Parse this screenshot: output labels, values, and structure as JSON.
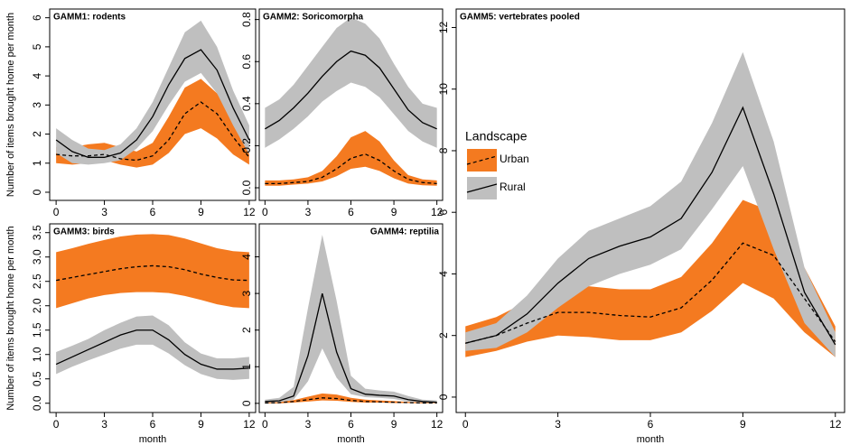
{
  "chart_data": [
    {
      "type": "line",
      "title": "GAMM1: rodents",
      "title_align": "left",
      "ylabel": "Number of items brought home per month",
      "x": [
        0,
        1,
        2,
        3,
        4,
        5,
        6,
        7,
        8,
        9,
        10,
        11,
        12
      ],
      "xlim": [
        -0.4,
        12.4
      ],
      "xticks": [
        0,
        3,
        6,
        9,
        12
      ],
      "ylim": [
        -0.28,
        6.3
      ],
      "yticks": [
        0,
        1,
        2,
        3,
        4,
        5,
        6
      ],
      "series": [
        {
          "color": "#f47a20",
          "line_color": "#000000",
          "dash": true,
          "values": [
            1.3,
            1.25,
            1.25,
            1.3,
            1.15,
            1.1,
            1.25,
            1.8,
            2.7,
            3.1,
            2.7,
            1.9,
            1.2
          ],
          "lower": [
            1.0,
            0.95,
            1.0,
            1.1,
            0.95,
            0.85,
            0.95,
            1.35,
            2.0,
            2.2,
            1.85,
            1.3,
            0.95
          ],
          "upper": [
            1.55,
            1.55,
            1.65,
            1.7,
            1.55,
            1.4,
            1.7,
            2.6,
            3.6,
            3.9,
            3.4,
            2.5,
            1.5
          ]
        },
        {
          "color": "#bfbfbf",
          "line_color": "#000000",
          "dash": false,
          "values": [
            1.8,
            1.4,
            1.2,
            1.2,
            1.35,
            1.8,
            2.6,
            3.7,
            4.6,
            4.9,
            4.2,
            2.9,
            1.8
          ],
          "lower": [
            1.35,
            1.0,
            0.95,
            1.0,
            1.1,
            1.5,
            2.1,
            3.0,
            3.8,
            4.1,
            3.4,
            2.3,
            1.3
          ],
          "upper": [
            2.2,
            1.8,
            1.5,
            1.45,
            1.65,
            2.2,
            3.1,
            4.3,
            5.5,
            5.9,
            5.0,
            3.5,
            2.3
          ]
        }
      ]
    },
    {
      "type": "line",
      "title": "GAMM2: Soricomorpha",
      "title_align": "left",
      "x": [
        0,
        1,
        2,
        3,
        4,
        5,
        6,
        7,
        8,
        9,
        10,
        11,
        12
      ],
      "xlim": [
        -0.4,
        12.4
      ],
      "xticks": [
        0,
        3,
        6,
        9,
        12
      ],
      "ylim": [
        -0.06,
        0.85
      ],
      "yticks": [
        {
          "value": 0,
          "label": "0.0"
        },
        0.2,
        0.4,
        0.6,
        0.8
      ],
      "series": [
        {
          "color": "#f47a20",
          "line_color": "#000000",
          "dash": true,
          "values": [
            0.02,
            0.02,
            0.025,
            0.03,
            0.05,
            0.09,
            0.14,
            0.16,
            0.13,
            0.08,
            0.04,
            0.025,
            0.02
          ],
          "lower": [
            0.01,
            0.01,
            0.015,
            0.02,
            0.03,
            0.055,
            0.09,
            0.1,
            0.08,
            0.045,
            0.02,
            0.012,
            0.01
          ],
          "upper": [
            0.035,
            0.035,
            0.04,
            0.05,
            0.08,
            0.15,
            0.24,
            0.27,
            0.22,
            0.13,
            0.06,
            0.04,
            0.035
          ]
        },
        {
          "color": "#bfbfbf",
          "line_color": "#000000",
          "dash": false,
          "values": [
            0.28,
            0.32,
            0.38,
            0.45,
            0.53,
            0.6,
            0.65,
            0.63,
            0.57,
            0.47,
            0.37,
            0.31,
            0.28
          ],
          "lower": [
            0.19,
            0.23,
            0.28,
            0.34,
            0.41,
            0.46,
            0.5,
            0.48,
            0.43,
            0.35,
            0.27,
            0.22,
            0.19
          ],
          "upper": [
            0.38,
            0.42,
            0.49,
            0.58,
            0.67,
            0.76,
            0.81,
            0.78,
            0.71,
            0.59,
            0.48,
            0.4,
            0.38
          ]
        }
      ]
    },
    {
      "type": "line",
      "title": "GAMM3: birds",
      "title_align": "left",
      "ylabel": "Number of items brought home per month",
      "xlabel": "month",
      "x": [
        0,
        1,
        2,
        3,
        4,
        5,
        6,
        7,
        8,
        9,
        10,
        11,
        12
      ],
      "xlim": [
        -0.4,
        12.4
      ],
      "xticks": [
        0,
        3,
        6,
        9,
        12
      ],
      "ylim": [
        -0.19,
        3.68
      ],
      "yticks": [
        {
          "value": 0,
          "label": "0.0"
        },
        0.5,
        {
          "value": 1,
          "label": "1.0"
        },
        1.5,
        {
          "value": 2,
          "label": "2.0"
        },
        2.5,
        {
          "value": 3,
          "label": "3.0"
        },
        3.5
      ],
      "series": [
        {
          "color": "#f47a20",
          "line_color": "#000000",
          "dash": true,
          "values": [
            2.52,
            2.58,
            2.64,
            2.7,
            2.76,
            2.8,
            2.82,
            2.8,
            2.74,
            2.65,
            2.58,
            2.53,
            2.52
          ],
          "lower": [
            1.95,
            2.05,
            2.15,
            2.22,
            2.26,
            2.28,
            2.28,
            2.26,
            2.2,
            2.12,
            2.03,
            1.97,
            1.95
          ],
          "upper": [
            3.1,
            3.18,
            3.27,
            3.35,
            3.42,
            3.46,
            3.47,
            3.45,
            3.38,
            3.28,
            3.18,
            3.12,
            3.1
          ]
        },
        {
          "color": "#bfbfbf",
          "line_color": "#000000",
          "dash": false,
          "values": [
            0.8,
            0.95,
            1.1,
            1.25,
            1.4,
            1.5,
            1.5,
            1.3,
            1.0,
            0.8,
            0.7,
            0.7,
            0.72
          ],
          "lower": [
            0.6,
            0.75,
            0.88,
            1.0,
            1.12,
            1.2,
            1.2,
            1.02,
            0.78,
            0.6,
            0.5,
            0.48,
            0.5
          ],
          "upper": [
            1.05,
            1.18,
            1.32,
            1.5,
            1.65,
            1.78,
            1.8,
            1.6,
            1.25,
            1.02,
            0.92,
            0.92,
            0.95
          ]
        }
      ]
    },
    {
      "type": "line",
      "title": "GAMM4: reptilia",
      "title_align": "right",
      "xlabel": "month",
      "x": [
        0,
        1,
        2,
        3,
        4,
        5,
        6,
        7,
        8,
        9,
        10,
        11,
        12
      ],
      "xlim": [
        -0.4,
        12.4
      ],
      "xticks": [
        0,
        3,
        6,
        9,
        12
      ],
      "ylim": [
        -0.25,
        4.9
      ],
      "yticks": [
        0,
        1,
        2,
        3,
        4
      ],
      "series": [
        {
          "color": "#f47a20",
          "line_color": "#000000",
          "dash": true,
          "values": [
            0.01,
            0.02,
            0.05,
            0.1,
            0.15,
            0.13,
            0.08,
            0.05,
            0.04,
            0.03,
            0.02,
            0.01,
            0.01
          ],
          "lower": [
            0,
            0,
            0.02,
            0.05,
            0.08,
            0.07,
            0.04,
            0.02,
            0.02,
            0.01,
            0.01,
            0,
            0
          ],
          "upper": [
            0.03,
            0.04,
            0.09,
            0.18,
            0.27,
            0.24,
            0.15,
            0.1,
            0.08,
            0.06,
            0.04,
            0.03,
            0.03
          ]
        },
        {
          "color": "#bfbfbf",
          "line_color": "#000000",
          "dash": false,
          "values": [
            0.05,
            0.07,
            0.2,
            1.3,
            3.0,
            1.4,
            0.4,
            0.25,
            0.22,
            0.2,
            0.1,
            0.05,
            0.03
          ],
          "lower": [
            0.02,
            0.03,
            0.1,
            0.6,
            1.5,
            0.7,
            0.25,
            0.17,
            0.15,
            0.12,
            0.05,
            0.02,
            0.01
          ],
          "upper": [
            0.1,
            0.15,
            0.45,
            2.6,
            4.6,
            2.8,
            0.75,
            0.4,
            0.35,
            0.32,
            0.2,
            0.1,
            0.08
          ]
        }
      ]
    },
    {
      "type": "line",
      "title": "GAMM5: vertebrates pooled",
      "title_align": "left",
      "xlabel": "month",
      "legend_title": "Landscape",
      "legend_position": "left",
      "x": [
        0,
        1,
        2,
        3,
        4,
        5,
        6,
        7,
        8,
        9,
        10,
        11,
        12
      ],
      "xlim": [
        -0.3,
        12.3
      ],
      "xticks": [
        0,
        3,
        6,
        9,
        12
      ],
      "ylim": [
        -0.5,
        12.6
      ],
      "yticks": [
        0,
        2,
        4,
        6,
        8,
        10,
        12
      ],
      "series": [
        {
          "name": "Urban",
          "color": "#f47a20",
          "line_color": "#000000",
          "dash": true,
          "values": [
            1.75,
            2.0,
            2.4,
            2.75,
            2.75,
            2.65,
            2.6,
            2.9,
            3.8,
            5.0,
            4.6,
            3.2,
            1.8
          ],
          "lower": [
            1.3,
            1.5,
            1.8,
            2.0,
            1.95,
            1.85,
            1.85,
            2.1,
            2.8,
            3.7,
            3.2,
            2.1,
            1.3
          ],
          "upper": [
            2.3,
            2.6,
            3.1,
            3.5,
            3.6,
            3.5,
            3.5,
            3.9,
            5.0,
            6.4,
            6.0,
            4.2,
            2.3
          ]
        },
        {
          "name": "Rural",
          "color": "#bfbfbf",
          "line_color": "#000000",
          "dash": false,
          "values": [
            1.75,
            2.0,
            2.7,
            3.7,
            4.5,
            4.9,
            5.2,
            5.8,
            7.3,
            9.4,
            6.6,
            3.4,
            1.7
          ],
          "lower": [
            1.5,
            1.6,
            2.1,
            2.9,
            3.6,
            4.0,
            4.3,
            4.8,
            6.1,
            7.5,
            4.8,
            2.4,
            1.3
          ],
          "upper": [
            2.1,
            2.4,
            3.3,
            4.5,
            5.4,
            5.8,
            6.2,
            7.0,
            8.9,
            11.2,
            8.3,
            4.2,
            2.1
          ]
        }
      ]
    }
  ]
}
